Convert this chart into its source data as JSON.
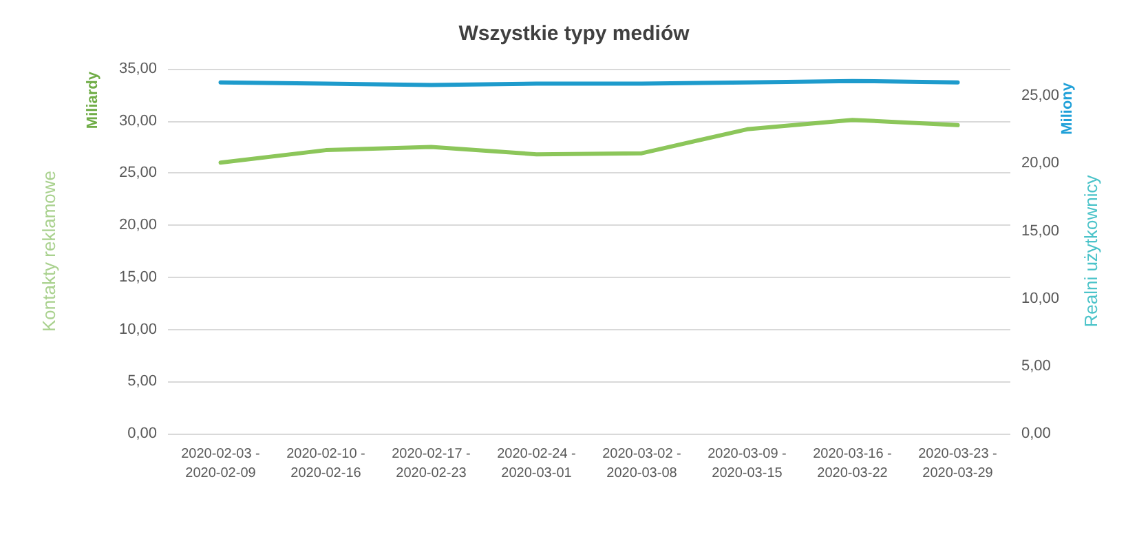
{
  "chart_data": {
    "type": "line",
    "title": "Wszystkie typy mediów",
    "ylabel": "Kontakty reklamowe",
    "y2label": "Realni użytkownicy",
    "annotations": [
      "Miliardy",
      "Miliony"
    ],
    "categories": [
      "2020-02-03 -\n2020-02-09",
      "2020-02-10 -\n2020-02-16",
      "2020-02-17 -\n2020-02-23",
      "2020-02-24 -\n2020-03-01",
      "2020-03-02 -\n2020-03-08",
      "2020-03-09 -\n2020-03-15",
      "2020-03-16 -\n2020-03-22",
      "2020-03-23 -\n2020-03-29"
    ],
    "series": [
      {
        "color": "#8cc65a",
        "values": [
          26.0,
          27.2,
          27.5,
          26.8,
          26.9,
          29.2,
          30.1,
          29.6
        ]
      },
      {
        "color": "#1e9bcc",
        "axis": "y2",
        "values": [
          26.0,
          25.9,
          25.8,
          25.9,
          25.9,
          26.0,
          26.1,
          26.0
        ]
      }
    ],
    "ylim": [
      0,
      35
    ],
    "yticks": [
      {
        "value": 0,
        "label": "0,00"
      },
      {
        "value": 5,
        "label": "5,00"
      },
      {
        "value": 10,
        "label": "10,00"
      },
      {
        "value": 15,
        "label": "15,00"
      },
      {
        "value": 20,
        "label": "20,00"
      },
      {
        "value": 25,
        "label": "25,00"
      },
      {
        "value": 30,
        "label": "30,00"
      },
      {
        "value": 35,
        "label": "35,00"
      }
    ],
    "y2lim": [
      0,
      27
    ],
    "y2ticks": [
      {
        "value": 0,
        "label": "0,00"
      },
      {
        "value": 5,
        "label": "5,00"
      },
      {
        "value": 10,
        "label": "10,00"
      },
      {
        "value": 15,
        "label": "15,00"
      },
      {
        "value": 20,
        "label": "20,00"
      },
      {
        "value": 25,
        "label": "25,00"
      }
    ],
    "grid": "y",
    "marker": "none",
    "line_style": "solid"
  }
}
